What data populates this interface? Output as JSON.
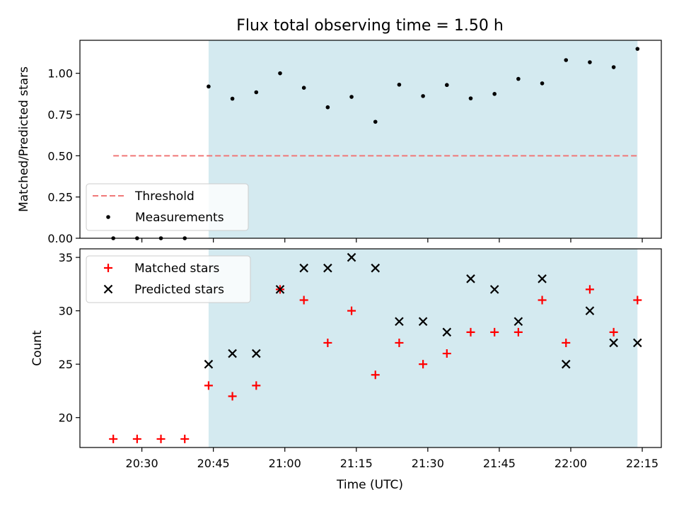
{
  "figure": {
    "title": "Flux total observing time = 1.50 h",
    "xlabel": "Time (UTC)"
  },
  "chart_data": [
    {
      "type": "scatter",
      "panel": "top",
      "ylabel": "Matched/Predicted stars",
      "ylim": [
        0,
        1.2
      ],
      "yticks": [
        0,
        0.25,
        0.5,
        0.75,
        1.0
      ],
      "ytick_labels": [
        "0.00",
        "0.25",
        "0.50",
        "0.75",
        "1.00"
      ],
      "xlim": [
        "20:17",
        "22:19"
      ],
      "shaded_span": {
        "from": "20:44",
        "to": "22:14",
        "color": "#d4eaf0"
      },
      "legend_position": "lower-left",
      "threshold": {
        "name": "Threshold",
        "value": 0.5,
        "from": "20:24",
        "to": "22:14",
        "color": "#f07878"
      },
      "series": [
        {
          "name": "Measurements",
          "color": "#000000",
          "x": [
            "20:24",
            "20:29",
            "20:34",
            "20:39",
            "20:44",
            "20:49",
            "20:54",
            "20:59",
            "21:04",
            "21:09",
            "21:14",
            "21:19",
            "21:24",
            "21:29",
            "21:34",
            "21:39",
            "21:44",
            "21:49",
            "21:54",
            "21:59",
            "22:04",
            "22:09",
            "22:14"
          ],
          "y": [
            0,
            0,
            0,
            0,
            0.92,
            0.846,
            0.885,
            1.0,
            0.912,
            0.794,
            0.857,
            0.706,
            0.931,
            0.862,
            0.929,
            0.848,
            0.875,
            0.966,
            0.939,
            1.08,
            1.067,
            1.037,
            1.148
          ]
        }
      ]
    },
    {
      "type": "scatter",
      "panel": "bottom",
      "ylabel": "Count",
      "ylim": [
        17.2,
        35.8
      ],
      "yticks": [
        20,
        25,
        30,
        35
      ],
      "xlim": [
        "20:17",
        "22:19"
      ],
      "xticks": [
        "20:30",
        "20:45",
        "21:00",
        "21:15",
        "21:30",
        "21:45",
        "22:00",
        "22:15"
      ],
      "shaded_span": {
        "from": "20:44",
        "to": "22:14",
        "color": "#d4eaf0"
      },
      "legend_position": "upper-left",
      "series": [
        {
          "name": "Matched stars",
          "marker": "plus",
          "color": "#ff0000",
          "x": [
            "20:24",
            "20:29",
            "20:34",
            "20:39",
            "20:44",
            "20:49",
            "20:54",
            "20:59",
            "21:04",
            "21:09",
            "21:14",
            "21:19",
            "21:24",
            "21:29",
            "21:34",
            "21:39",
            "21:44",
            "21:49",
            "21:54",
            "21:59",
            "22:04",
            "22:09",
            "22:14"
          ],
          "y": [
            18,
            18,
            18,
            18,
            23,
            22,
            23,
            32,
            31,
            27,
            30,
            24,
            27,
            25,
            26,
            28,
            28,
            28,
            31,
            27,
            32,
            28,
            31
          ]
        },
        {
          "name": "Predicted stars",
          "marker": "x",
          "color": "#000000",
          "x": [
            "20:44",
            "20:49",
            "20:54",
            "20:59",
            "21:04",
            "21:09",
            "21:14",
            "21:19",
            "21:24",
            "21:29",
            "21:34",
            "21:39",
            "21:44",
            "21:49",
            "21:54",
            "21:59",
            "22:04",
            "22:09",
            "22:14"
          ],
          "y": [
            25,
            26,
            26,
            32,
            34,
            34,
            35,
            34,
            29,
            29,
            28,
            33,
            32,
            29,
            33,
            25,
            30,
            27,
            27
          ]
        }
      ]
    }
  ]
}
